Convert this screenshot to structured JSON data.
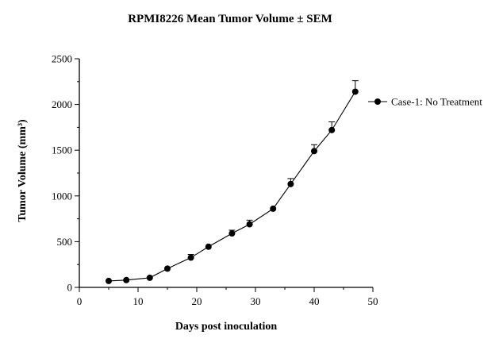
{
  "chart_data": {
    "type": "line",
    "title": "RPMI8226 Mean Tumor Volume ± SEM",
    "xlabel": "Days post inoculation",
    "ylabel": "Tumor Volume (mm³)",
    "xlim": [
      0,
      50
    ],
    "ylim": [
      0,
      2500
    ],
    "xticks": [
      0,
      10,
      20,
      30,
      40,
      50
    ],
    "yticks": [
      0,
      500,
      1000,
      1500,
      2000,
      2500
    ],
    "grid": false,
    "legend_position": "right",
    "series": [
      {
        "name": "Case-1: No Treatment",
        "color": "#000000",
        "marker": "circle",
        "x": [
          5,
          8,
          12,
          15,
          19,
          22,
          26,
          29,
          33,
          36,
          40,
          43,
          47
        ],
        "y": [
          70,
          80,
          105,
          205,
          325,
          445,
          590,
          690,
          860,
          1130,
          1490,
          1720,
          2140
        ],
        "sem": [
          8,
          10,
          15,
          20,
          35,
          30,
          35,
          45,
          20,
          60,
          70,
          90,
          120
        ]
      }
    ]
  }
}
